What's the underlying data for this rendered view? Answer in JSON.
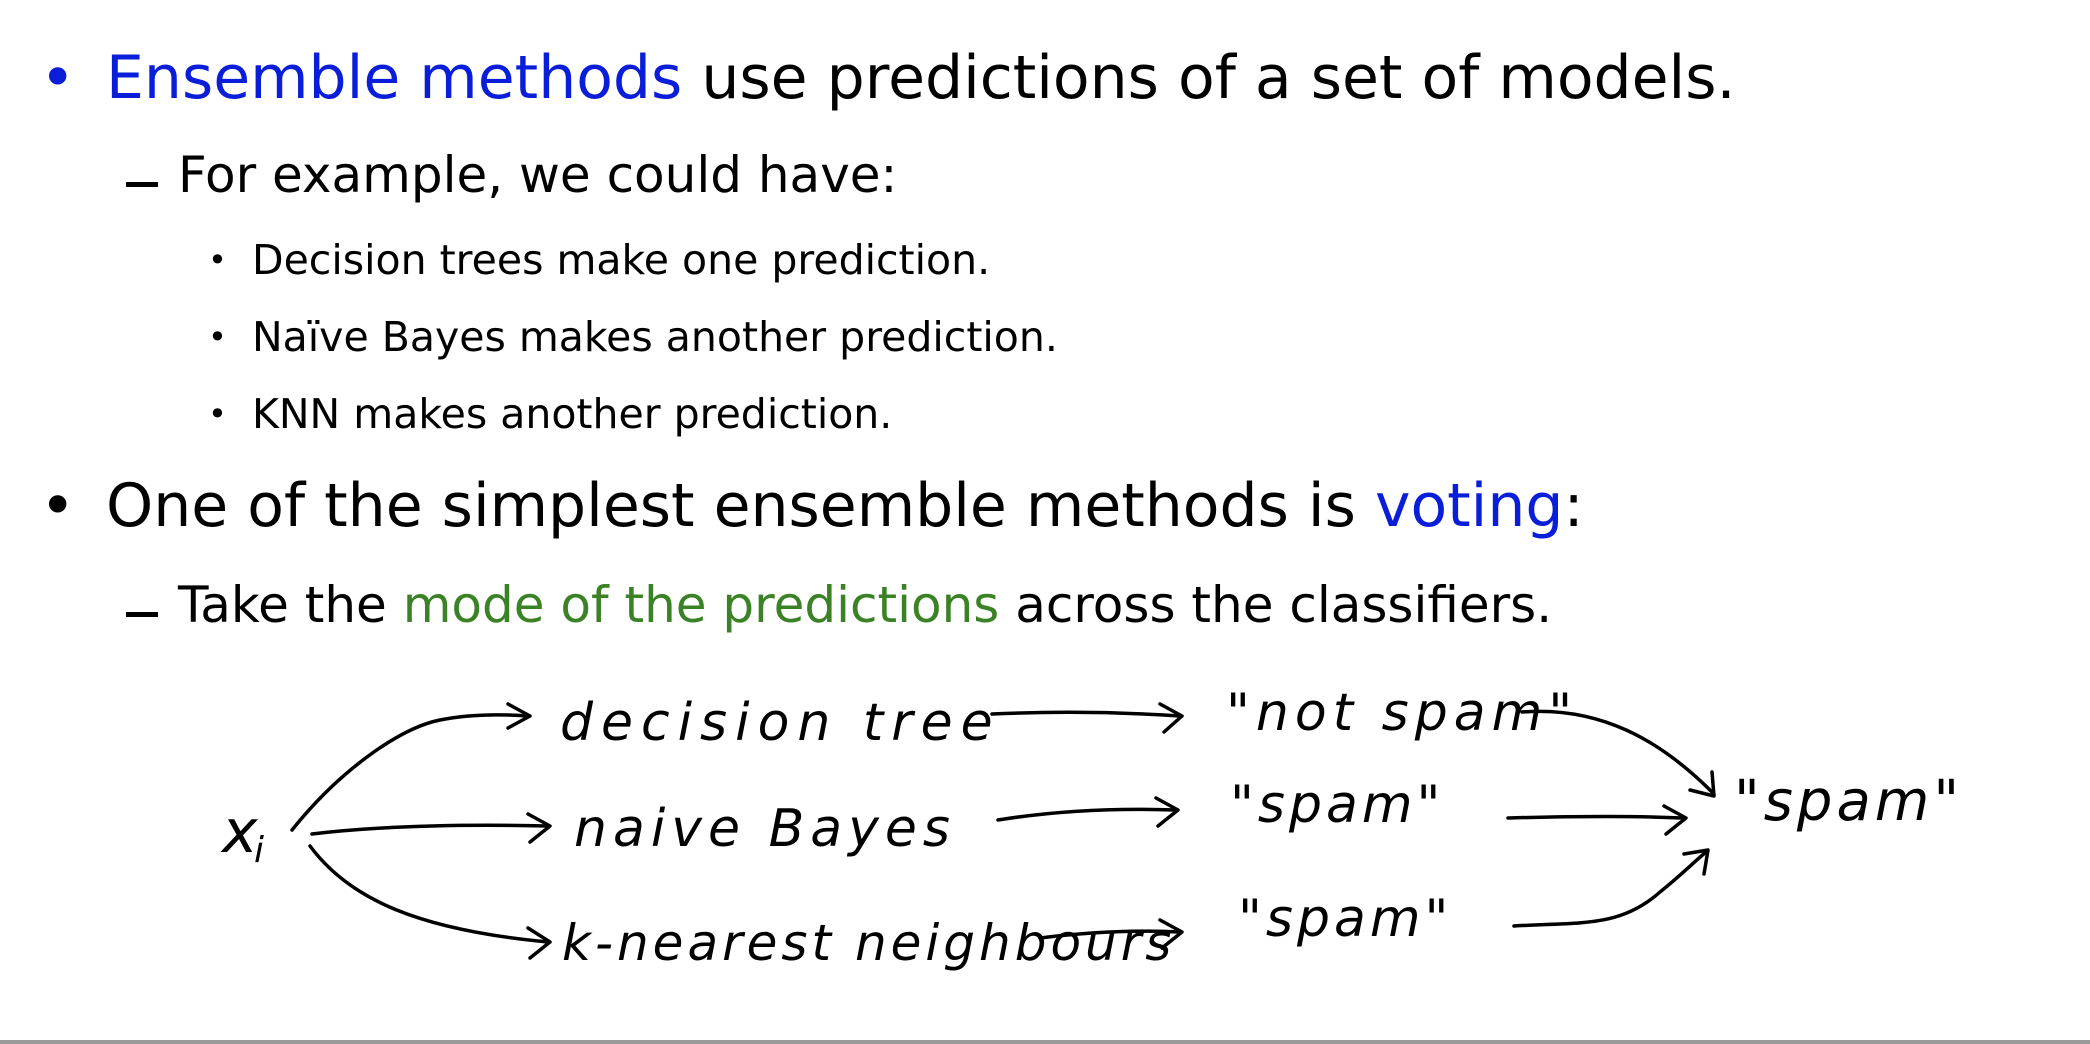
{
  "slide": {
    "bullet1": {
      "highlight": "Ensemble methods",
      "rest": " use predictions of a set of models."
    },
    "sub1": "For example, we could have:",
    "items": [
      "Decision trees make one prediction.",
      "Naïve Bayes makes another prediction.",
      "KNN makes another prediction."
    ],
    "bullet2": {
      "prefix": "One of the simplest ensemble methods is ",
      "highlight": "voting",
      "suffix": ":"
    },
    "sub2": {
      "prefix": "Take the ",
      "highlight": "mode of the predictions",
      "suffix": " across the classifiers."
    },
    "colors": {
      "blue": "#0a1ed9",
      "green": "#3b8125"
    }
  },
  "diagram": {
    "input": "x",
    "input_subscript": "i",
    "models": [
      "decision tree",
      "naive Bayes",
      "k-nearest neighbours"
    ],
    "predictions": [
      "\"not spam\"",
      "\"spam\"",
      "\"spam\""
    ],
    "output": "\"spam\""
  }
}
